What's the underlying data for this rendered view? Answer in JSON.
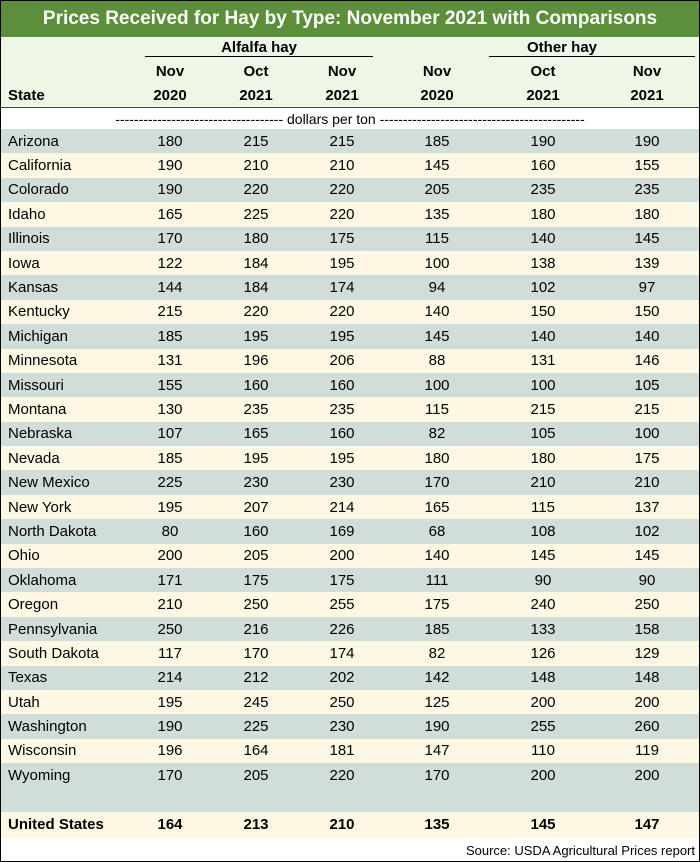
{
  "title": "Prices Received for Hay by Type: November 2021 with Comparisons",
  "groups": {
    "alfalfa": "Alfalfa hay",
    "other": "Other hay"
  },
  "columns": [
    {
      "month": "Nov",
      "year": "2020"
    },
    {
      "month": "Oct",
      "year": "2021"
    },
    {
      "month": "Nov",
      "year": "2021"
    },
    {
      "month": "Nov",
      "year": "2020"
    },
    {
      "month": "Oct",
      "year": "2021"
    },
    {
      "month": "Nov",
      "year": "2021"
    }
  ],
  "state_header": "State",
  "units": "------------------------------------ dollars per ton --------------------------------------------",
  "rows": [
    {
      "state": "Arizona",
      "v": [
        "180",
        "215",
        "215",
        "185",
        "190",
        "190"
      ]
    },
    {
      "state": "California",
      "v": [
        "190",
        "210",
        "210",
        "145",
        "160",
        "155"
      ]
    },
    {
      "state": "Colorado",
      "v": [
        "190",
        "220",
        "220",
        "205",
        "235",
        "235"
      ]
    },
    {
      "state": "Idaho",
      "v": [
        "165",
        "225",
        "220",
        "135",
        "180",
        "180"
      ]
    },
    {
      "state": "Illinois",
      "v": [
        "170",
        "180",
        "175",
        "115",
        "140",
        "145"
      ]
    },
    {
      "state": "Iowa",
      "v": [
        "122",
        "184",
        "195",
        "100",
        "138",
        "139"
      ]
    },
    {
      "state": "Kansas",
      "v": [
        "144",
        "184",
        "174",
        "94",
        "102",
        "97"
      ]
    },
    {
      "state": "Kentucky",
      "v": [
        "215",
        "220",
        "220",
        "140",
        "150",
        "150"
      ]
    },
    {
      "state": "Michigan",
      "v": [
        "185",
        "195",
        "195",
        "145",
        "140",
        "140"
      ]
    },
    {
      "state": "Minnesota",
      "v": [
        "131",
        "196",
        "206",
        "88",
        "131",
        "146"
      ]
    },
    {
      "state": "Missouri",
      "v": [
        "155",
        "160",
        "160",
        "100",
        "100",
        "105"
      ]
    },
    {
      "state": "Montana",
      "v": [
        "130",
        "235",
        "235",
        "115",
        "215",
        "215"
      ]
    },
    {
      "state": "Nebraska",
      "v": [
        "107",
        "165",
        "160",
        "82",
        "105",
        "100"
      ]
    },
    {
      "state": "Nevada",
      "v": [
        "185",
        "195",
        "195",
        "180",
        "180",
        "175"
      ]
    },
    {
      "state": "New Mexico",
      "v": [
        "225",
        "230",
        "230",
        "170",
        "210",
        "210"
      ]
    },
    {
      "state": "New York",
      "v": [
        "195",
        "207",
        "214",
        "165",
        "115",
        "137"
      ]
    },
    {
      "state": "North Dakota",
      "v": [
        "80",
        "160",
        "169",
        "68",
        "108",
        "102"
      ]
    },
    {
      "state": "Ohio",
      "v": [
        "200",
        "205",
        "200",
        "140",
        "145",
        "145"
      ]
    },
    {
      "state": "Oklahoma",
      "v": [
        "171",
        "175",
        "175",
        "111",
        "90",
        "90"
      ]
    },
    {
      "state": "Oregon",
      "v": [
        "210",
        "250",
        "255",
        "175",
        "240",
        "250"
      ]
    },
    {
      "state": "Pennsylvania",
      "v": [
        "250",
        "216",
        "226",
        "185",
        "133",
        "158"
      ]
    },
    {
      "state": "South Dakota",
      "v": [
        "117",
        "170",
        "174",
        "82",
        "126",
        "129"
      ]
    },
    {
      "state": "Texas",
      "v": [
        "214",
        "212",
        "202",
        "142",
        "148",
        "148"
      ]
    },
    {
      "state": "Utah",
      "v": [
        "195",
        "245",
        "250",
        "125",
        "200",
        "200"
      ]
    },
    {
      "state": "Washington",
      "v": [
        "190",
        "225",
        "230",
        "190",
        "255",
        "260"
      ]
    },
    {
      "state": "Wisconsin",
      "v": [
        "196",
        "164",
        "181",
        "147",
        "110",
        "119"
      ]
    },
    {
      "state": "Wyoming",
      "v": [
        "170",
        "205",
        "220",
        "170",
        "200",
        "200"
      ]
    }
  ],
  "total": {
    "state": "United States",
    "v": [
      "164",
      "213",
      "210",
      "135",
      "145",
      "147"
    ]
  },
  "source": "Source: USDA Agricultural Prices report",
  "colors": {
    "title_bg": "#5b8f3b",
    "header_bg": "#eef6e6",
    "row_alt": "#d1ddd9",
    "row_plain": "#fdf8e4"
  }
}
